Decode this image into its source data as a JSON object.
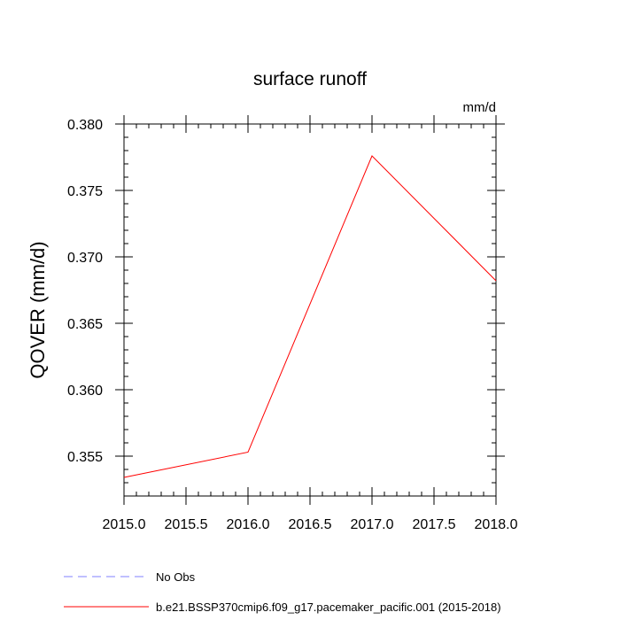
{
  "chart_data": {
    "type": "line",
    "title": "surface runoff",
    "units_label": "mm/d",
    "xlabel": "",
    "ylabel": "QOVER  (mm/d)",
    "xlim": [
      2015.0,
      2018.0
    ],
    "ylim": [
      0.352,
      0.38
    ],
    "x_ticks": [
      2015.0,
      2015.5,
      2016.0,
      2016.5,
      2017.0,
      2017.5,
      2018.0
    ],
    "x_tick_labels": [
      "2015.0",
      "2015.5",
      "2016.0",
      "2016.5",
      "2017.0",
      "2017.5",
      "2018.0"
    ],
    "y_ticks": [
      0.355,
      0.36,
      0.365,
      0.37,
      0.375,
      0.38
    ],
    "y_tick_labels": [
      "0.355",
      "0.360",
      "0.365",
      "0.370",
      "0.375",
      "0.380"
    ],
    "series": [
      {
        "name": "b.e21.BSSP370cmip6.f09_g17.pacemaker_pacific.001 (2015-2018)",
        "color": "#ff0000",
        "dash": "solid",
        "x": [
          2015.0,
          2016.0,
          2017.0,
          2018.0
        ],
        "y": [
          0.3534,
          0.3553,
          0.3776,
          0.3682
        ]
      }
    ],
    "legend": [
      {
        "label": "No Obs",
        "color": "#8080ff",
        "dash": "dashed"
      },
      {
        "label": "b.e21.BSSP370cmip6.f09_g17.pacemaker_pacific.001 (2015-2018)",
        "color": "#ff0000",
        "dash": "solid"
      }
    ],
    "grid": false,
    "legend_position": "bottom-left"
  }
}
